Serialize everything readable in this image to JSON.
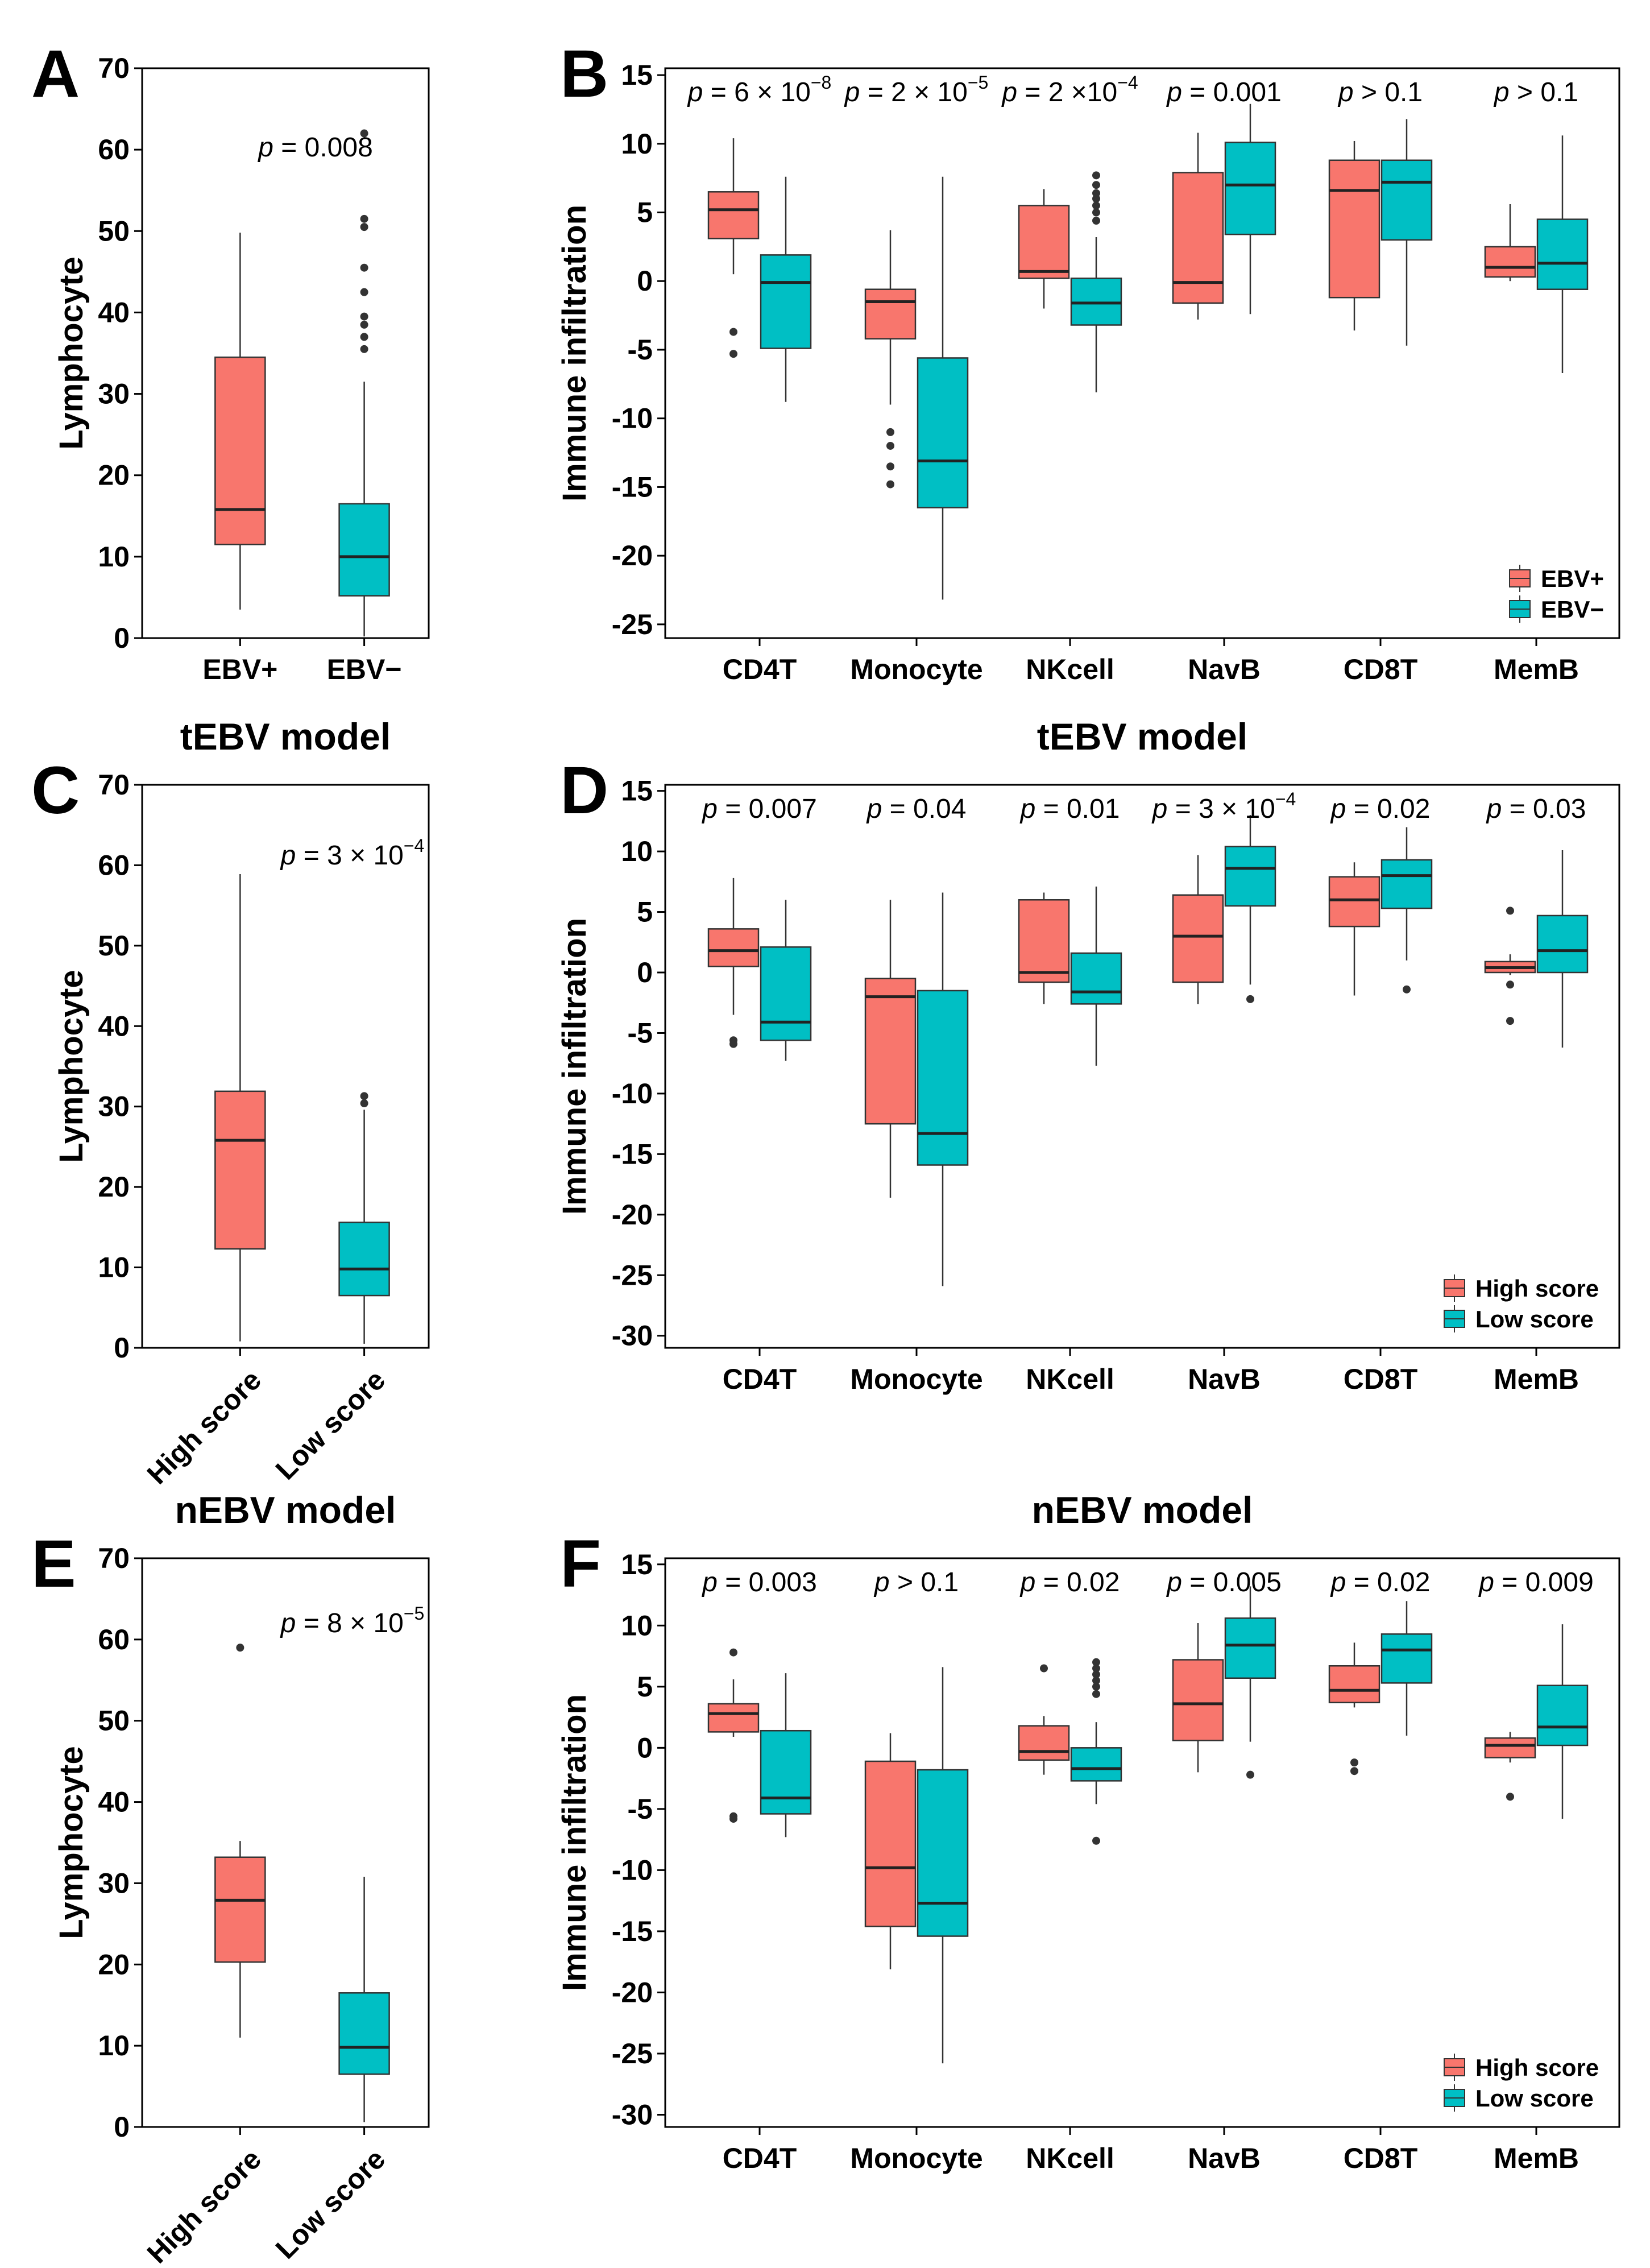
{
  "colors": {
    "high": "#F8766D",
    "low": "#00BFC4"
  },
  "chart_data": [
    {
      "id": "A",
      "type": "box",
      "panel_label": "A",
      "title": "",
      "ylabel": "Lymphocyte",
      "ylim": [
        0,
        70
      ],
      "yticks": [
        0,
        10,
        20,
        30,
        40,
        50,
        60,
        70
      ],
      "categories": [
        "EBV+",
        "EBV−"
      ],
      "xtick_rotate": false,
      "annotations": [
        {
          "p": "p",
          "text": " = 0.008",
          "group": 1
        }
      ],
      "boxes": [
        {
          "cat": 0,
          "color": "high",
          "lw": 3.5,
          "q1": 11.5,
          "med": 15.8,
          "q3": 34.5,
          "uw": 49.8,
          "out": []
        },
        {
          "cat": 1,
          "color": "low",
          "lw": 0.2,
          "q1": 5.2,
          "med": 10,
          "q3": 16.5,
          "uw": 31.5,
          "out": [
            35.5,
            37,
            38.5,
            39.5,
            42.5,
            45.5,
            50.5,
            51.5,
            62
          ]
        }
      ]
    },
    {
      "id": "B",
      "type": "box",
      "panel_label": "B",
      "title": "",
      "ylabel": "Immune infiltration",
      "ylim": [
        -26,
        15.5
      ],
      "yticks": [
        -25,
        -20,
        -15,
        -10,
        -5,
        0,
        5,
        10,
        15
      ],
      "categories": [
        "CD4T",
        "Monocyte",
        "NKcell",
        "NavB",
        "CD8T",
        "MemB"
      ],
      "xtick_rotate": false,
      "legend": [
        "EBV+",
        "EBV−"
      ],
      "annotations": [
        {
          "p": "p",
          "text": " = 6 × 10",
          "sup": "−8",
          "group": 0
        },
        {
          "p": "p",
          "text": " = 2 × 10",
          "sup": "−5",
          "group": 1
        },
        {
          "p": "p",
          "text": " = 2 ×10",
          "sup": "−4",
          "group": 2
        },
        {
          "p": "p",
          "text": " = 0.001",
          "group": 3
        },
        {
          "p": "p",
          "text": " > 0.1",
          "group": 4
        },
        {
          "p": "p",
          "text": " > 0.1",
          "group": 5
        }
      ],
      "boxes": [
        {
          "cat": 0,
          "color": "high",
          "lw": 0.5,
          "q1": 3.1,
          "med": 5.2,
          "q3": 6.5,
          "uw": 10.4,
          "out": [
            -3.7,
            -5.3
          ]
        },
        {
          "cat": 0,
          "color": "low",
          "lw": -8.8,
          "q1": -4.9,
          "med": -0.1,
          "q3": 1.9,
          "uw": 7.6,
          "out": []
        },
        {
          "cat": 1,
          "color": "high",
          "lw": -9.0,
          "q1": -4.2,
          "med": -1.5,
          "q3": -0.6,
          "uw": 3.7,
          "out": [
            -11,
            -12,
            -13.5,
            -14.8
          ]
        },
        {
          "cat": 1,
          "color": "low",
          "lw": -23.2,
          "q1": -16.5,
          "med": -13.1,
          "q3": -5.6,
          "uw": 7.6,
          "out": []
        },
        {
          "cat": 2,
          "color": "high",
          "lw": -2.0,
          "q1": 0.2,
          "med": 0.7,
          "q3": 5.5,
          "uw": 6.7,
          "out": []
        },
        {
          "cat": 2,
          "color": "low",
          "lw": -8.1,
          "q1": -3.2,
          "med": -1.6,
          "q3": 0.2,
          "uw": 3.2,
          "out": [
            4.4,
            5,
            5.5,
            6,
            6.4,
            7,
            7.7
          ]
        },
        {
          "cat": 3,
          "color": "high",
          "lw": -2.8,
          "q1": -1.6,
          "med": -0.1,
          "q3": 7.9,
          "uw": 10.8,
          "out": []
        },
        {
          "cat": 3,
          "color": "low",
          "lw": -2.4,
          "q1": 3.4,
          "med": 7.0,
          "q3": 10.1,
          "uw": 12.9,
          "out": []
        },
        {
          "cat": 4,
          "color": "high",
          "lw": -3.6,
          "q1": -1.2,
          "med": 6.6,
          "q3": 8.8,
          "uw": 10.2,
          "out": []
        },
        {
          "cat": 4,
          "color": "low",
          "lw": -4.7,
          "q1": 3.0,
          "med": 7.2,
          "q3": 8.8,
          "uw": 11.8,
          "out": []
        },
        {
          "cat": 5,
          "color": "high",
          "lw": 0.0,
          "q1": 0.3,
          "med": 1.0,
          "q3": 2.5,
          "uw": 5.6,
          "out": []
        },
        {
          "cat": 5,
          "color": "low",
          "lw": -6.7,
          "q1": -0.6,
          "med": 1.3,
          "q3": 4.5,
          "uw": 10.6,
          "out": []
        }
      ]
    },
    {
      "id": "C",
      "type": "box",
      "panel_label": "C",
      "title": "tEBV model",
      "ylabel": "Lymphocyte",
      "ylim": [
        0,
        70
      ],
      "yticks": [
        0,
        10,
        20,
        30,
        40,
        50,
        60,
        70
      ],
      "categories": [
        "High score",
        "Low score"
      ],
      "xtick_rotate": true,
      "annotations": [
        {
          "p": "p",
          "text": " = 3 × 10",
          "sup": "−4",
          "group": 1
        }
      ],
      "boxes": [
        {
          "cat": 0,
          "color": "high",
          "lw": 0.8,
          "q1": 12.3,
          "med": 25.8,
          "q3": 31.9,
          "uw": 58.9,
          "out": []
        },
        {
          "cat": 1,
          "color": "low",
          "lw": 0.5,
          "q1": 6.5,
          "med": 9.8,
          "q3": 15.6,
          "uw": 29.6,
          "out": [
            30.4,
            31.3
          ]
        }
      ]
    },
    {
      "id": "D",
      "type": "box",
      "panel_label": "D",
      "title": "tEBV model",
      "ylabel": "Immune infiltration",
      "ylim": [
        -31,
        15.5
      ],
      "yticks": [
        -30,
        -25,
        -20,
        -15,
        -10,
        -5,
        0,
        5,
        10,
        15
      ],
      "categories": [
        "CD4T",
        "Monocyte",
        "NKcell",
        "NavB",
        "CD8T",
        "MemB"
      ],
      "xtick_rotate": false,
      "legend": [
        "High score",
        "Low score"
      ],
      "annotations": [
        {
          "p": "p",
          "text": " = 0.007",
          "group": 0
        },
        {
          "p": "p",
          "text": " = 0.04",
          "group": 1
        },
        {
          "p": "p",
          "text": " = 0.01",
          "group": 2
        },
        {
          "p": "p",
          "text": " = 3 × 10",
          "sup": "−4",
          "group": 3
        },
        {
          "p": "p",
          "text": " = 0.02",
          "group": 4
        },
        {
          "p": "p",
          "text": " = 0.03",
          "group": 5
        }
      ],
      "boxes": [
        {
          "cat": 0,
          "color": "high",
          "lw": -3.5,
          "q1": 0.5,
          "med": 1.8,
          "q3": 3.6,
          "uw": 7.8,
          "out": [
            -5.6,
            -5.9
          ]
        },
        {
          "cat": 0,
          "color": "low",
          "lw": -7.3,
          "q1": -5.6,
          "med": -4.1,
          "q3": 2.1,
          "uw": 6.0,
          "out": []
        },
        {
          "cat": 1,
          "color": "high",
          "lw": -18.6,
          "q1": -12.5,
          "med": -2.0,
          "q3": -0.5,
          "uw": 6.0,
          "out": []
        },
        {
          "cat": 1,
          "color": "low",
          "lw": -25.9,
          "q1": -15.9,
          "med": -13.3,
          "q3": -1.5,
          "uw": 6.6,
          "out": []
        },
        {
          "cat": 2,
          "color": "high",
          "lw": -2.6,
          "q1": -0.8,
          "med": 0.0,
          "q3": 6.0,
          "uw": 6.6,
          "out": []
        },
        {
          "cat": 2,
          "color": "low",
          "lw": -7.7,
          "q1": -2.6,
          "med": -1.6,
          "q3": 1.6,
          "uw": 7.1,
          "out": []
        },
        {
          "cat": 3,
          "color": "high",
          "lw": -2.6,
          "q1": -0.8,
          "med": 3.0,
          "q3": 6.4,
          "uw": 9.7,
          "out": []
        },
        {
          "cat": 3,
          "color": "low",
          "lw": -1.0,
          "q1": 5.5,
          "med": 8.6,
          "q3": 10.4,
          "uw": 13.0,
          "out": [
            -2.2
          ]
        },
        {
          "cat": 4,
          "color": "high",
          "lw": -1.9,
          "q1": 3.8,
          "med": 6.0,
          "q3": 7.9,
          "uw": 9.1,
          "out": []
        },
        {
          "cat": 4,
          "color": "low",
          "lw": 1.0,
          "q1": 5.3,
          "med": 8.0,
          "q3": 9.3,
          "uw": 12.0,
          "out": [
            -1.4
          ]
        },
        {
          "cat": 5,
          "color": "high",
          "lw": -0.2,
          "q1": 0.0,
          "med": 0.4,
          "q3": 0.9,
          "uw": 1.5,
          "out": [
            5.1,
            -1.0,
            -4.0
          ]
        },
        {
          "cat": 5,
          "color": "low",
          "lw": -6.2,
          "q1": 0.0,
          "med": 1.8,
          "q3": 4.7,
          "uw": 10.1,
          "out": []
        }
      ]
    },
    {
      "id": "E",
      "type": "box",
      "panel_label": "E",
      "title": "nEBV model",
      "ylabel": "Lymphocyte",
      "ylim": [
        0,
        70
      ],
      "yticks": [
        0,
        10,
        20,
        30,
        40,
        50,
        60,
        70
      ],
      "categories": [
        "High score",
        "Low score"
      ],
      "xtick_rotate": true,
      "annotations": [
        {
          "p": "p",
          "text": " = 8 × 10",
          "sup": "−5",
          "group": 1
        }
      ],
      "boxes": [
        {
          "cat": 0,
          "color": "high",
          "lw": 11.0,
          "q1": 20.3,
          "med": 27.9,
          "q3": 33.2,
          "uw": 35.2,
          "out": [
            59.0
          ]
        },
        {
          "cat": 1,
          "color": "low",
          "lw": 0.6,
          "q1": 6.5,
          "med": 9.8,
          "q3": 16.5,
          "uw": 30.8,
          "out": []
        }
      ]
    },
    {
      "id": "F",
      "type": "box",
      "panel_label": "F",
      "title": "nEBV model",
      "ylabel": "Immune infiltration",
      "ylim": [
        -31,
        15.5
      ],
      "yticks": [
        -30,
        -25,
        -20,
        -15,
        -10,
        -5,
        0,
        5,
        10,
        15
      ],
      "categories": [
        "CD4T",
        "Monocyte",
        "NKcell",
        "NavB",
        "CD8T",
        "MemB"
      ],
      "xtick_rotate": false,
      "legend": [
        "High score",
        "Low score"
      ],
      "annotations": [
        {
          "p": "p",
          "text": " = 0.003",
          "group": 0
        },
        {
          "p": "p",
          "text": " > 0.1",
          "group": 1
        },
        {
          "p": "p",
          "text": " = 0.02",
          "group": 2
        },
        {
          "p": "p",
          "text": " = 0.005",
          "group": 3
        },
        {
          "p": "p",
          "text": " = 0.02",
          "group": 4
        },
        {
          "p": "p",
          "text": " = 0.009",
          "group": 5
        }
      ],
      "boxes": [
        {
          "cat": 0,
          "color": "high",
          "lw": 0.9,
          "q1": 1.3,
          "med": 2.8,
          "q3": 3.6,
          "uw": 5.6,
          "out": [
            7.8,
            -5.6,
            -5.8
          ]
        },
        {
          "cat": 0,
          "color": "low",
          "lw": -7.3,
          "q1": -5.4,
          "med": -4.1,
          "q3": 1.4,
          "uw": 6.1,
          "out": []
        },
        {
          "cat": 1,
          "color": "high",
          "lw": -18.1,
          "q1": -14.6,
          "med": -9.8,
          "q3": -1.1,
          "uw": 1.2,
          "out": []
        },
        {
          "cat": 1,
          "color": "low",
          "lw": -25.8,
          "q1": -15.4,
          "med": -12.7,
          "q3": -1.8,
          "uw": 6.6,
          "out": []
        },
        {
          "cat": 2,
          "color": "high",
          "lw": -2.2,
          "q1": -1.0,
          "med": -0.3,
          "q3": 1.8,
          "uw": 2.6,
          "out": [
            6.5
          ]
        },
        {
          "cat": 2,
          "color": "low",
          "lw": -4.6,
          "q1": -2.7,
          "med": -1.7,
          "q3": 0.0,
          "uw": 2.1,
          "out": [
            4.4,
            5.0,
            5.5,
            6.0,
            6.5,
            7.0,
            -7.6
          ]
        },
        {
          "cat": 3,
          "color": "high",
          "lw": -2.0,
          "q1": 0.6,
          "med": 3.6,
          "q3": 7.2,
          "uw": 10.2,
          "out": []
        },
        {
          "cat": 3,
          "color": "low",
          "lw": 0.5,
          "q1": 5.7,
          "med": 8.4,
          "q3": 10.6,
          "uw": 13.2,
          "out": [
            -2.2
          ]
        },
        {
          "cat": 4,
          "color": "high",
          "lw": 3.3,
          "q1": 3.7,
          "med": 4.7,
          "q3": 6.7,
          "uw": 8.6,
          "out": [
            -1.2,
            -1.9
          ]
        },
        {
          "cat": 4,
          "color": "low",
          "lw": 1.0,
          "q1": 5.3,
          "med": 8.0,
          "q3": 9.3,
          "uw": 12.0,
          "out": []
        },
        {
          "cat": 5,
          "color": "high",
          "lw": -1.2,
          "q1": -0.8,
          "med": 0.2,
          "q3": 0.8,
          "uw": 1.3,
          "out": [
            -4.0
          ]
        },
        {
          "cat": 5,
          "color": "low",
          "lw": -5.8,
          "q1": 0.2,
          "med": 1.7,
          "q3": 5.1,
          "uw": 10.1,
          "out": []
        }
      ]
    }
  ]
}
